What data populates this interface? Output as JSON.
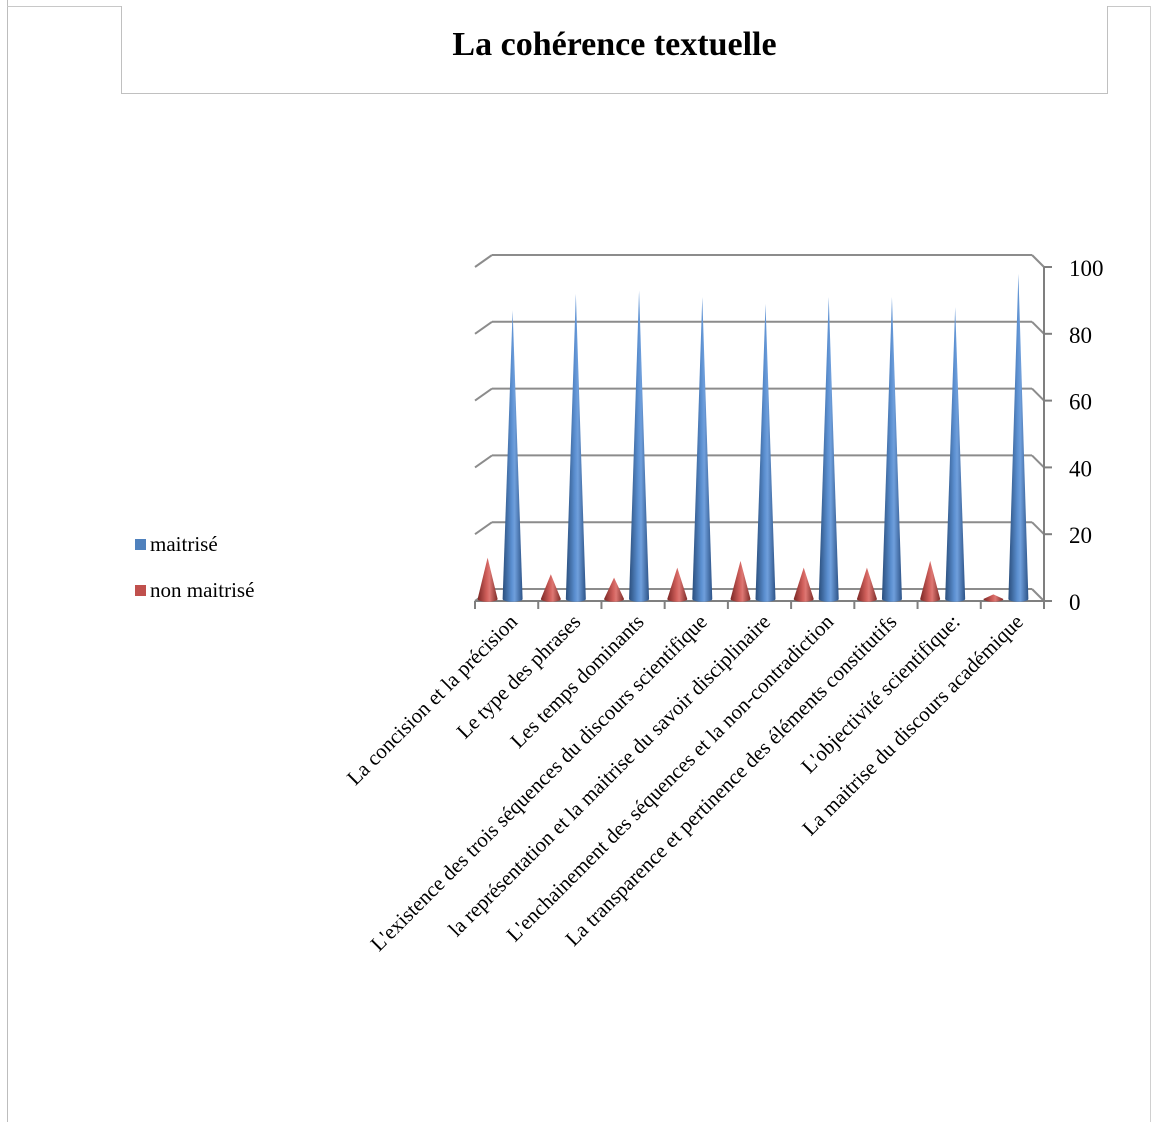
{
  "title": "La cohérence textuelle",
  "legend": [
    {
      "label": "maitrisé",
      "color": "#4F81BD"
    },
    {
      "label": "non maitrisé",
      "color": "#C0504D"
    }
  ],
  "chart_data": {
    "type": "bar",
    "style": "3d-cone",
    "title": "La cohérence textuelle",
    "xlabel": "",
    "ylabel": "",
    "ylim": [
      0,
      100
    ],
    "yticks": [
      0,
      20,
      40,
      60,
      80,
      100
    ],
    "grid": true,
    "legend_position": "left",
    "categories": [
      "La concision et la précision",
      "Le type des phrases",
      "Les temps dominants",
      "L'existence des trois séquences du discours scientifique",
      "la représentation et la maitrise du savoir disciplinaire",
      "L'enchainement des séquences et la non-contradiction",
      "La transparence et pertinence des éléments constitutifs",
      "L'objectivité scientifique:",
      "La maitrise du discours académique"
    ],
    "series": [
      {
        "name": "maitrisé",
        "color": "#4F81BD",
        "values": [
          87,
          92,
          93,
          91,
          89,
          91,
          91,
          88,
          98
        ]
      },
      {
        "name": "non maitrisé",
        "color": "#C0504D",
        "values": [
          13,
          8,
          7,
          10,
          12,
          10,
          10,
          12,
          2
        ]
      }
    ]
  }
}
